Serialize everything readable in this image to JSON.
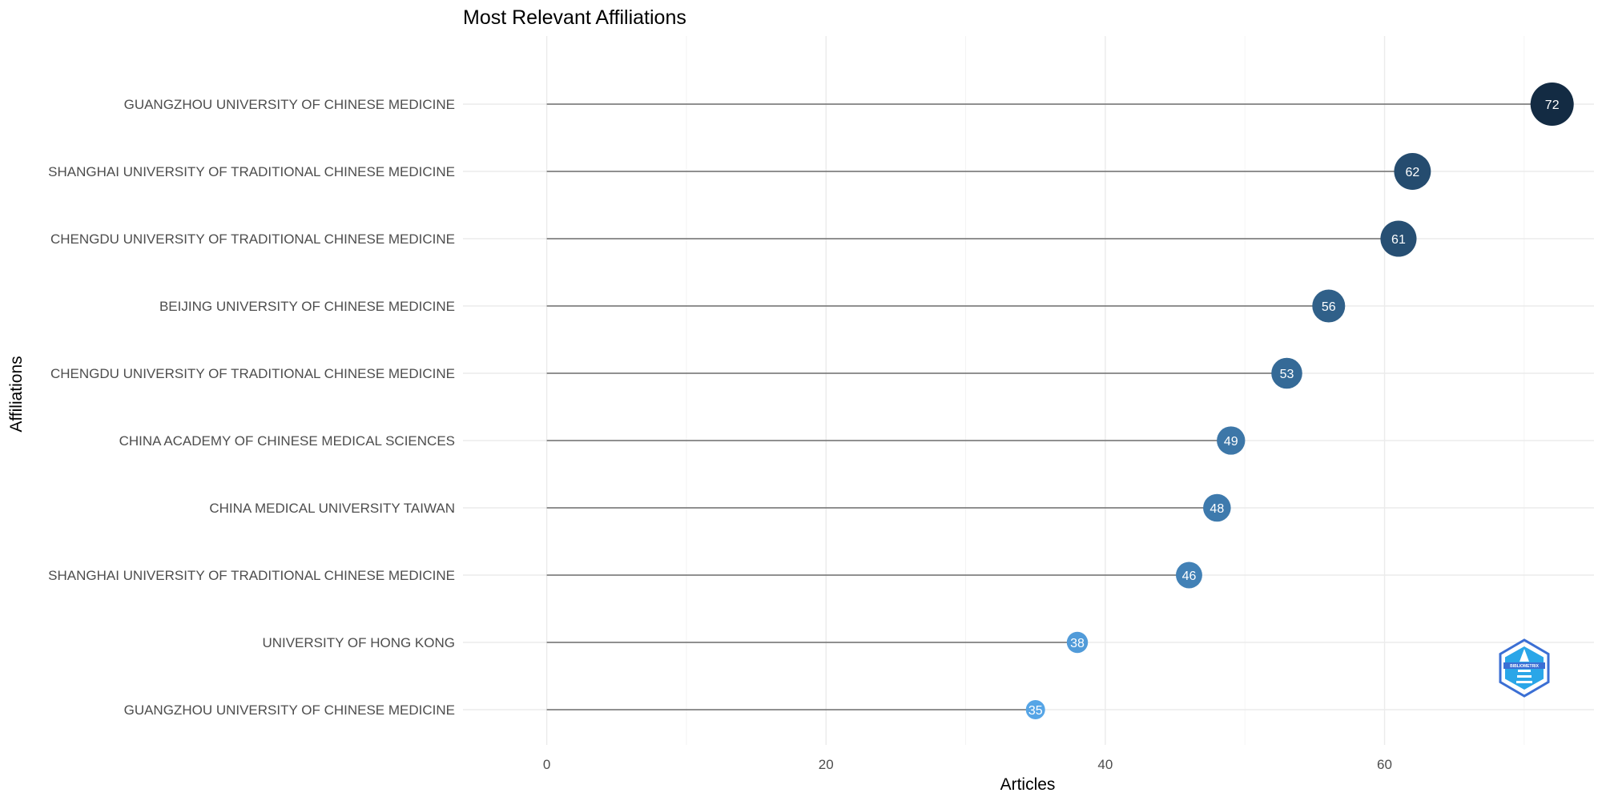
{
  "chart_data": {
    "type": "lollipop",
    "title": "Most Relevant Affiliations",
    "xlabel": "Articles",
    "ylabel": "Affiliations",
    "xlim": [
      -6,
      75
    ],
    "xticks": [
      0,
      20,
      40,
      60
    ],
    "grid": true,
    "legend": "none",
    "categories": [
      "GUANGZHOU UNIVERSITY OF CHINESE MEDICINE",
      "SHANGHAI UNIVERSITY OF TRADITIONAL CHINESE MEDICINE",
      "CHENGDU UNIVERSITY OF TRADITIONAL CHINESE MEDICINE",
      "BEIJING UNIVERSITY OF CHINESE MEDICINE",
      "CHENGDU UNIVERSITY OF TRADITIONAL CHINESE MEDICINE",
      "CHINA ACADEMY OF CHINESE MEDICAL SCIENCES",
      "CHINA MEDICAL UNIVERSITY TAIWAN",
      "SHANGHAI UNIVERSITY OF TRADITIONAL CHINESE MEDICINE",
      "UNIVERSITY OF HONG KONG",
      "GUANGZHOU UNIVERSITY OF CHINESE MEDICINE"
    ],
    "values": [
      72,
      62,
      61,
      56,
      53,
      49,
      48,
      46,
      38,
      35
    ],
    "colors": {
      "low": "#56a5e6",
      "high": "#132b43",
      "stem": "#6e6e6e",
      "grid_major": "#ebebeb",
      "grid_minor": "#f4f4f4"
    }
  },
  "watermark": {
    "text": "BIBLIOMETRIX",
    "colors": {
      "outer": "#3b6fd4",
      "inner": "#2aa6e8"
    }
  }
}
